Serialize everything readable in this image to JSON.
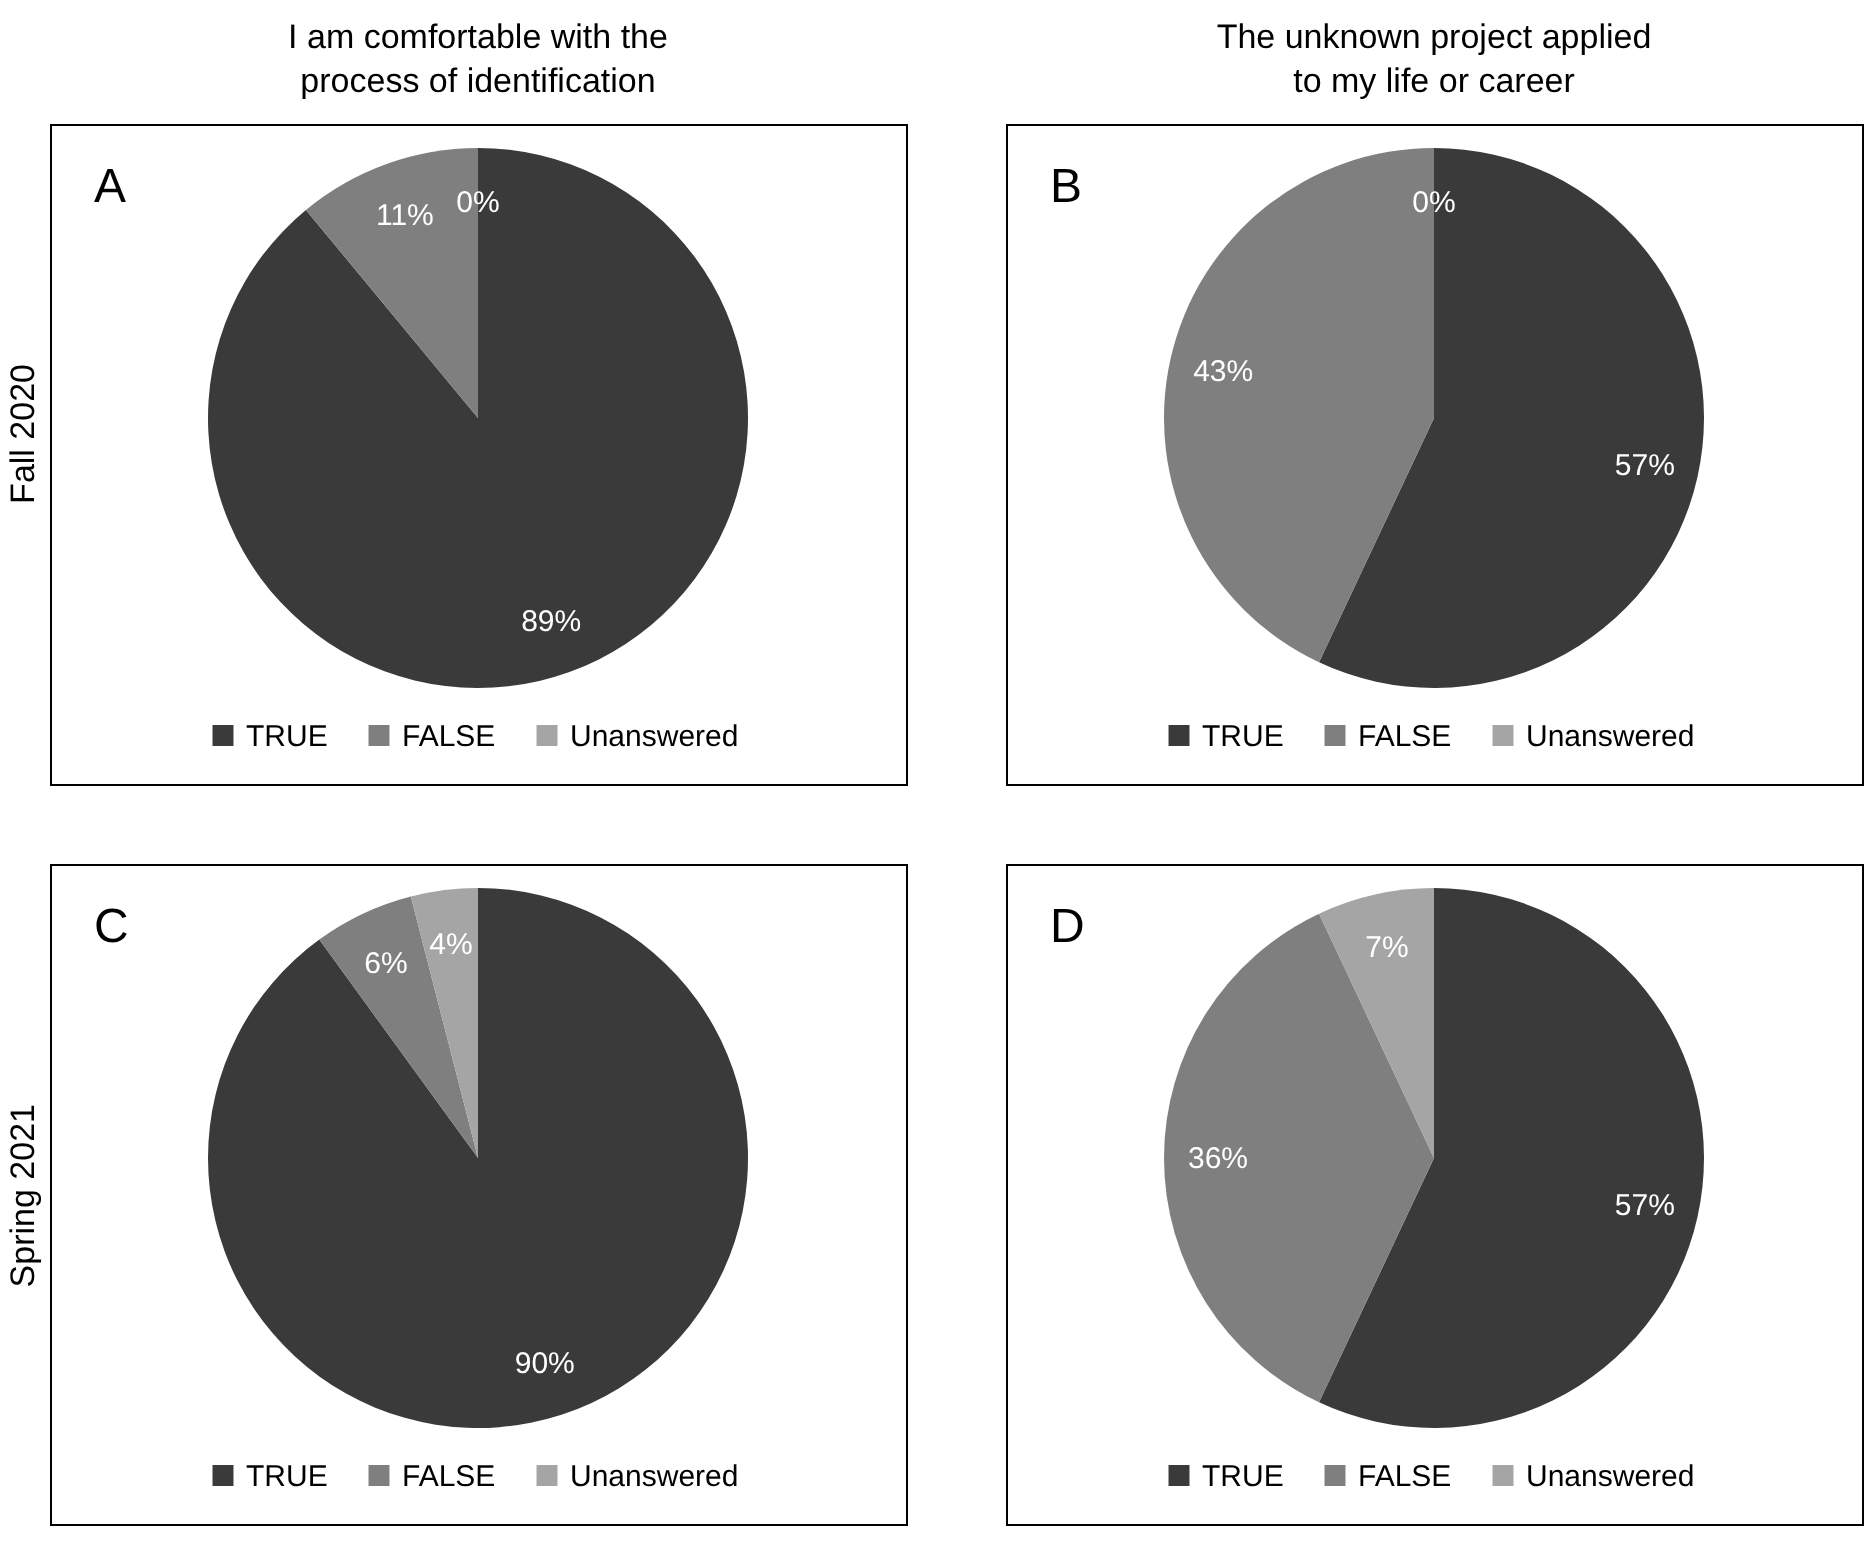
{
  "chart_data": [
    {
      "type": "pie",
      "title": "I am comfortable with the process of identification",
      "ylabel": "Fall 2020",
      "annotations": [
        "A"
      ],
      "categories": [
        "TRUE",
        "FALSE",
        "Unanswered"
      ],
      "values": [
        89,
        11,
        0
      ],
      "value_labels": [
        "89%",
        "11%",
        "0%"
      ],
      "colors": [
        "#3b3a3b",
        "#7f7f7f",
        "#a5a5a5"
      ],
      "legend": "bottom"
    },
    {
      "type": "pie",
      "title": "The unknown project applied to my life or career",
      "annotations": [
        "B"
      ],
      "categories": [
        "TRUE",
        "FALSE",
        "Unanswered"
      ],
      "values": [
        57,
        43,
        0
      ],
      "value_labels": [
        "57%",
        "43%",
        "0%"
      ],
      "colors": [
        "#3b3a3b",
        "#7f7f7f",
        "#a5a5a5"
      ],
      "legend": "bottom"
    },
    {
      "type": "pie",
      "ylabel": "Spring 2021",
      "annotations": [
        "C"
      ],
      "categories": [
        "TRUE",
        "FALSE",
        "Unanswered"
      ],
      "values": [
        90,
        6,
        4
      ],
      "value_labels": [
        "90%",
        "6%",
        "4%"
      ],
      "colors": [
        "#3b3a3b",
        "#7f7f7f",
        "#a5a5a5"
      ],
      "legend": "bottom"
    },
    {
      "type": "pie",
      "annotations": [
        "D"
      ],
      "categories": [
        "TRUE",
        "FALSE",
        "Unanswered"
      ],
      "values": [
        57,
        36,
        7
      ],
      "value_labels": [
        "57%",
        "36%",
        "7%"
      ],
      "colors": [
        "#3b3a3b",
        "#7f7f7f",
        "#a5a5a5"
      ],
      "legend": "bottom"
    }
  ]
}
